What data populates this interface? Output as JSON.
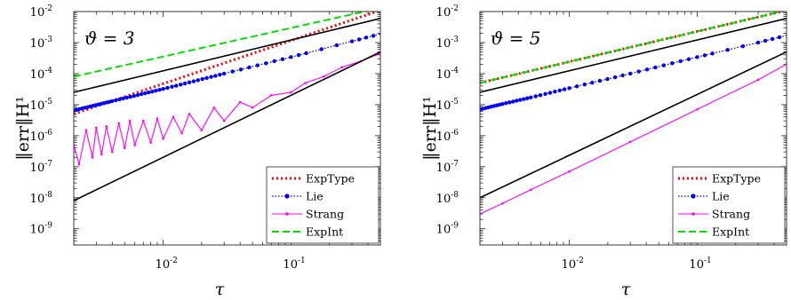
{
  "chart_data": [
    {
      "type": "line",
      "annotation": "ϑ = 3",
      "ylabel": "‖err‖H¹",
      "xlabel": "τ",
      "xscale": "log",
      "yscale": "log",
      "xlim": [
        0.002,
        0.5
      ],
      "ylim": [
        3e-10,
        0.01
      ],
      "x_ticks": [
        {
          "v": 0.01,
          "m": "10",
          "e": "-2"
        },
        {
          "v": 0.1,
          "m": "10",
          "e": "-1"
        }
      ],
      "y_ticks": [
        {
          "v": 1e-09,
          "m": "10",
          "e": "-9"
        },
        {
          "v": 1e-08,
          "m": "10",
          "e": "-8"
        },
        {
          "v": 1e-07,
          "m": "10",
          "e": "-7"
        },
        {
          "v": 1e-06,
          "m": "10",
          "e": "-6"
        },
        {
          "v": 1e-05,
          "m": "10",
          "e": "-5"
        },
        {
          "v": 0.0001,
          "m": "10",
          "e": "-4"
        },
        {
          "v": 0.001,
          "m": "10",
          "e": "-3"
        },
        {
          "v": 0.01,
          "m": "10",
          "e": "-2"
        }
      ],
      "legend": [
        "ExpType",
        "Lie",
        "Strang",
        "ExpInt"
      ],
      "legend_position": "bottom-right",
      "series": [
        {
          "name": "ExpType",
          "style": "red-dotted",
          "x": [
            0.002,
            0.5
          ],
          "y": [
            5e-06,
            0.011
          ]
        },
        {
          "name": "Lie",
          "style": "blue-dotted-markers",
          "x": [
            0.002,
            0.004,
            0.01,
            0.03,
            0.1,
            0.3,
            0.5
          ],
          "y": [
            6.5e-06,
            1.3e-05,
            3.2e-05,
            0.0001,
            0.00034,
            0.0011,
            0.0019
          ]
        },
        {
          "name": "Strang",
          "style": "magenta-solid-markers",
          "x": [
            0.002,
            0.0022,
            0.0025,
            0.0028,
            0.003,
            0.0033,
            0.0036,
            0.004,
            0.0045,
            0.005,
            0.0055,
            0.006,
            0.007,
            0.008,
            0.009,
            0.01,
            0.012,
            0.014,
            0.016,
            0.02,
            0.025,
            0.03,
            0.04,
            0.05,
            0.07,
            0.1,
            0.13,
            0.18,
            0.25,
            0.35,
            0.5
          ],
          "y": [
            5e-07,
            1.2e-07,
            1.5e-06,
            2e-07,
            1.8e-06,
            2.5e-07,
            2e-06,
            3e-07,
            2.5e-06,
            4e-07,
            3e-06,
            5e-07,
            3e-06,
            6e-07,
            3.5e-06,
            8e-07,
            4e-06,
            1.2e-06,
            5e-06,
            1.5e-06,
            8e-06,
            3e-06,
            1.2e-05,
            8e-06,
            2e-05,
            2.5e-05,
            5e-05,
            8e-05,
            0.00016,
            0.00025,
            0.00045
          ]
        },
        {
          "name": "ExpInt",
          "style": "green-dashed",
          "x": [
            0.002,
            0.5
          ],
          "y": [
            8e-05,
            0.013
          ]
        },
        {
          "name": "",
          "style": "black-reference",
          "x": [
            0.002,
            0.5
          ],
          "y": [
            2.5e-05,
            0.006
          ]
        },
        {
          "name": "",
          "style": "black-reference",
          "x": [
            0.002,
            0.5
          ],
          "y": [
            8e-09,
            0.0005
          ]
        }
      ]
    },
    {
      "type": "line",
      "annotation": "ϑ = 5",
      "ylabel": "‖err‖H¹",
      "xlabel": "τ",
      "xscale": "log",
      "yscale": "log",
      "xlim": [
        0.002,
        0.5
      ],
      "ylim": [
        3e-10,
        0.01
      ],
      "x_ticks": [
        {
          "v": 0.01,
          "m": "10",
          "e": "-2"
        },
        {
          "v": 0.1,
          "m": "10",
          "e": "-1"
        }
      ],
      "y_ticks": [
        {
          "v": 1e-09,
          "m": "10",
          "e": "-9"
        },
        {
          "v": 1e-08,
          "m": "10",
          "e": "-8"
        },
        {
          "v": 1e-07,
          "m": "10",
          "e": "-7"
        },
        {
          "v": 1e-06,
          "m": "10",
          "e": "-6"
        },
        {
          "v": 1e-05,
          "m": "10",
          "e": "-5"
        },
        {
          "v": 0.0001,
          "m": "10",
          "e": "-4"
        },
        {
          "v": 0.001,
          "m": "10",
          "e": "-3"
        },
        {
          "v": 0.01,
          "m": "10",
          "e": "-2"
        }
      ],
      "legend": [
        "ExpType",
        "Lie",
        "Strang",
        "ExpInt"
      ],
      "legend_position": "bottom-right",
      "series": [
        {
          "name": "ExpType",
          "style": "red-dotted",
          "x": [
            0.002,
            0.5
          ],
          "y": [
            5e-05,
            0.011
          ]
        },
        {
          "name": "Lie",
          "style": "blue-dotted-markers",
          "x": [
            0.002,
            0.003,
            0.005,
            0.01,
            0.03,
            0.1,
            0.3,
            0.5
          ],
          "y": [
            7e-06,
            1.05e-05,
            1.7e-05,
            3.4e-05,
            0.0001,
            0.00034,
            0.001,
            0.0017
          ]
        },
        {
          "name": "Strang",
          "style": "magenta-solid-markers",
          "x": [
            0.002,
            0.003,
            0.005,
            0.01,
            0.03,
            0.1,
            0.3,
            0.5
          ],
          "y": [
            3e-09,
            6.5e-09,
            1.8e-08,
            7e-08,
            6.3e-07,
            7e-06,
            6.3e-05,
            0.0002
          ]
        },
        {
          "name": "ExpInt",
          "style": "green-dashed",
          "x": [
            0.002,
            0.5
          ],
          "y": [
            5e-05,
            0.011
          ]
        },
        {
          "name": "",
          "style": "black-reference",
          "x": [
            0.002,
            0.5
          ],
          "y": [
            2.5e-05,
            0.006
          ]
        },
        {
          "name": "",
          "style": "black-reference",
          "x": [
            0.002,
            0.5
          ],
          "y": [
            1e-08,
            0.0005
          ]
        }
      ]
    }
  ]
}
